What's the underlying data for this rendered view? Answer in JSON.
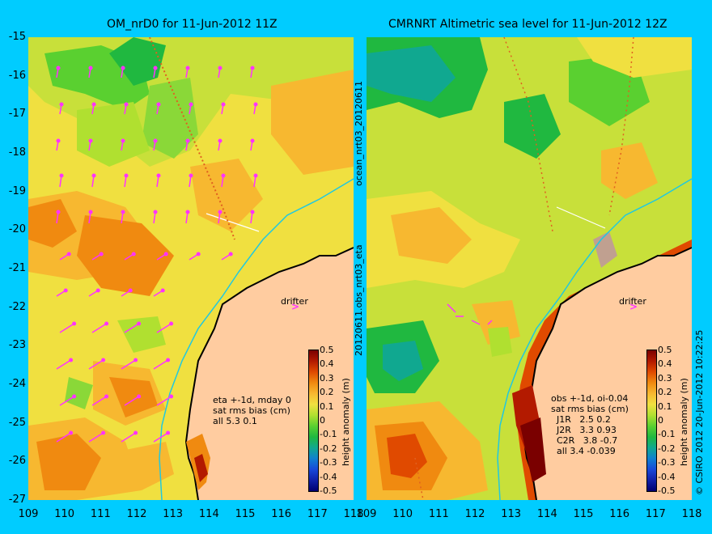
{
  "left_panel": {
    "title": "OM_nrD0 for 11-Jun-2012 11Z",
    "stats": "eta +-1d, mday 0\nsat rms bias (cm)\nall 5.3 0.1",
    "drifter_label": "drifter",
    "side_label_top": "ocean_nrt03_20120611",
    "side_label_bottom": "20120611.obs_nrt03_eta"
  },
  "right_panel": {
    "title": "CMRNRT Altimetric sea level  for 11-Jun-2012 12Z",
    "stats": "obs +-1d, oi-0.04\nsat rms bias (cm)\n  J1R   2.5 0.2\n  J2R   3.3 0.93\n  C2R   3.8 -0.7\n  all 3.4 -0.039",
    "drifter_label": "drifter",
    "credit": "© CSIRO 2012   20-Jun-2012 10:22:25"
  },
  "axes": {
    "lat_ticks": [
      "-15",
      "-16",
      "-17",
      "-18",
      "-19",
      "-20",
      "-21",
      "-22",
      "-23",
      "-24",
      "-25",
      "-26",
      "-27"
    ],
    "lon_ticks": [
      "109",
      "110",
      "111",
      "112",
      "113",
      "114",
      "115",
      "116",
      "117",
      "118"
    ],
    "lat_range": [
      -27,
      -15
    ],
    "lon_range": [
      109,
      118
    ]
  },
  "colorbar": {
    "label": "height anomaly (m)",
    "ticks": [
      "0.5",
      "0.4",
      "0.3",
      "0.2",
      "0.1",
      "0",
      "-0.1",
      "-0.2",
      "-0.3",
      "-0.4",
      "-0.5"
    ],
    "colors": [
      "#7a0000",
      "#b31a00",
      "#e04a00",
      "#f08a10",
      "#f7b830",
      "#f0e040",
      "#b0e030",
      "#5ad030",
      "#20b840",
      "#10a890",
      "#1080d0",
      "#1848d8",
      "#1020a8",
      "#000070"
    ]
  },
  "colors": {
    "background": "#00ccff",
    "land": "#ffcca0",
    "current_vectors": "#ff33ff",
    "coastline": "#000000",
    "isobath": "#20c8e0"
  }
}
